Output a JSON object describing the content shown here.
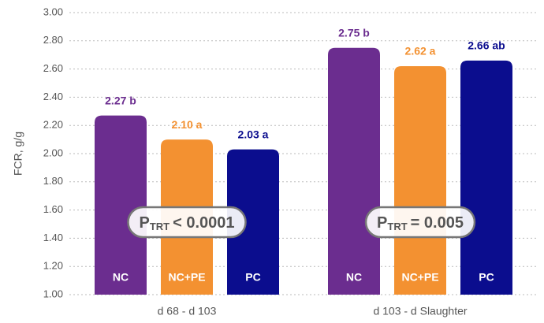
{
  "chart_data": {
    "type": "bar",
    "y_label": "FCR, g/g",
    "categories": [
      "d 68 - d 103",
      "d 103 - d Slaughter"
    ],
    "series": [
      {
        "name": "NC",
        "color": "#6b2d8f",
        "values": [
          2.27,
          2.75
        ],
        "value_labels": [
          "2.27 b",
          "2.75 b"
        ]
      },
      {
        "name": "NC+PE",
        "color": "#f39131",
        "values": [
          2.1,
          2.62
        ],
        "value_labels": [
          "2.10 a",
          "2.62 a"
        ]
      },
      {
        "name": "PC",
        "color": "#0b0d8e",
        "values": [
          2.03,
          2.66
        ],
        "value_labels": [
          "2.03 a",
          "2.66 ab"
        ]
      }
    ],
    "annotations": [
      {
        "label": "P",
        "subscript": "TRT",
        "text": "< 0.0001"
      },
      {
        "label": "P",
        "subscript": "TRT",
        "text": "= 0.005"
      }
    ],
    "ylim": [
      1.0,
      3.0
    ],
    "yticks": [
      {
        "value": 1.0,
        "label": "1.00"
      },
      {
        "value": 1.2,
        "label": "1.20"
      },
      {
        "value": 1.4,
        "label": "1.40"
      },
      {
        "value": 1.6,
        "label": "1.60"
      },
      {
        "value": 1.8,
        "label": "1.80"
      },
      {
        "value": 2.0,
        "label": "2.00"
      },
      {
        "value": 2.2,
        "label": "2.20"
      },
      {
        "value": 2.4,
        "label": "2.40"
      },
      {
        "value": 2.6,
        "label": "2.60"
      },
      {
        "value": 2.8,
        "label": "2.80"
      },
      {
        "value": 3.0,
        "label": "3.00"
      }
    ],
    "grid": true
  }
}
